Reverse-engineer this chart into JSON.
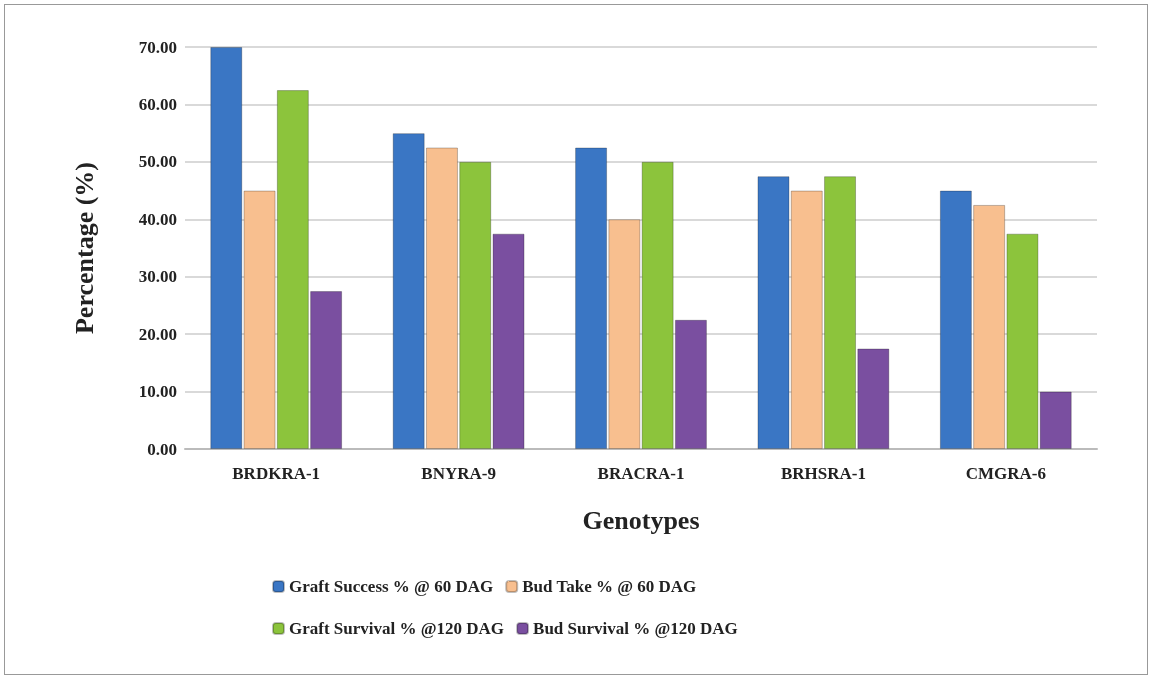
{
  "chart_data": {
    "type": "bar",
    "xlabel": "Genotypes",
    "ylabel": "Percentage (%)",
    "categories": [
      "BRDKRA-1",
      "BNYRA-9",
      "BRACRA-1",
      "BRHSRA-1",
      "CMGRA-6"
    ],
    "series": [
      {
        "name": "Graft Success % @ 60 DAG",
        "color": "#3a76c4",
        "values": [
          70,
          55,
          52.5,
          47.5,
          45
        ]
      },
      {
        "name": "Bud Take % @ 60 DAG",
        "color": "#f8bf8f",
        "values": [
          45,
          52.5,
          40,
          45,
          42.5
        ]
      },
      {
        "name": "Graft Survival % @120 DAG",
        "color": "#8cc43c",
        "values": [
          62.5,
          50,
          50,
          47.5,
          37.5
        ]
      },
      {
        "name": "Bud Survival % @120 DAG",
        "color": "#7a4fa0",
        "values": [
          27.5,
          37.5,
          22.5,
          17.5,
          10
        ]
      }
    ],
    "ylim": [
      0,
      70
    ],
    "yticks": [
      {
        "value": 0,
        "label": "0.00"
      },
      {
        "value": 10,
        "label": "10.00"
      },
      {
        "value": 20,
        "label": "20.00"
      },
      {
        "value": 30,
        "label": "30.00"
      },
      {
        "value": 40,
        "label": "40.00"
      },
      {
        "value": 50,
        "label": "50.00"
      },
      {
        "value": 60,
        "label": "60.00"
      },
      {
        "value": 70,
        "label": "70.00"
      }
    ],
    "grid": "y",
    "legend": "bottom"
  }
}
